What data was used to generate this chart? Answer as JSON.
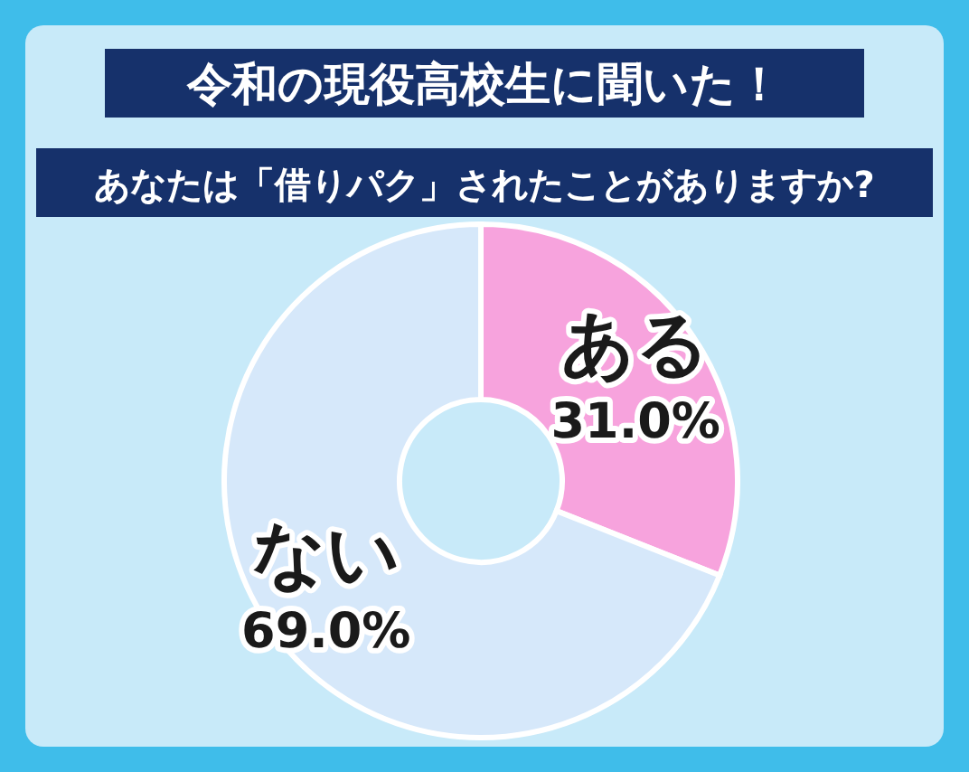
{
  "chart_data": {
    "type": "donut",
    "title": "令和の現役高校生に聞いた！",
    "subtitle": "あなたは「借りパク」されたことがありますか?",
    "categories": [
      "ある",
      "ない"
    ],
    "values": [
      31.0,
      69.0
    ],
    "colors": [
      "#f7a3dd",
      "#d6e8fa"
    ],
    "value_labels": [
      "31.0%",
      "69.0%"
    ]
  }
}
